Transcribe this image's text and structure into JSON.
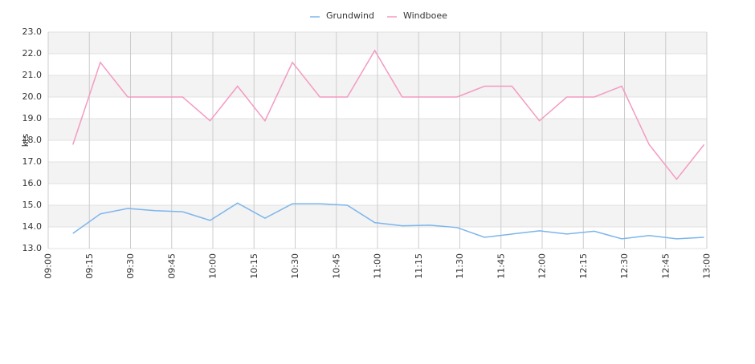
{
  "chart_data": {
    "type": "line",
    "y_label": "kts",
    "x": [
      "09:09",
      "09:19",
      "09:29",
      "09:39",
      "09:49",
      "09:59",
      "10:09",
      "10:19",
      "10:29",
      "10:39",
      "10:49",
      "10:59",
      "11:09",
      "11:19",
      "11:29",
      "11:39",
      "11:49",
      "11:59",
      "12:09",
      "12:19",
      "12:29",
      "12:39",
      "12:49",
      "12:59"
    ],
    "series": [
      {
        "name": "Grundwind",
        "color": "#7cb5ec",
        "values": [
          13.7,
          14.6,
          14.85,
          14.75,
          14.7,
          14.3,
          15.1,
          14.4,
          15.07,
          15.07,
          15.0,
          14.2,
          14.05,
          14.08,
          13.97,
          13.52,
          13.67,
          13.82,
          13.67,
          13.8,
          13.45,
          13.6,
          13.45,
          13.52
        ]
      },
      {
        "name": "Windboee",
        "color": "#f49ac1",
        "values": [
          17.8,
          21.6,
          20.0,
          20.0,
          20.0,
          18.9,
          20.5,
          18.9,
          21.6,
          20.0,
          20.0,
          22.15,
          20.0,
          20.0,
          20.0,
          20.5,
          20.5,
          18.9,
          20.0,
          20.0,
          20.5,
          17.8,
          16.2,
          17.8
        ]
      }
    ],
    "xlim": [
      "09:00",
      "13:00"
    ],
    "xticks": [
      "09:00",
      "09:15",
      "09:30",
      "09:45",
      "10:00",
      "10:15",
      "10:30",
      "10:45",
      "11:00",
      "11:15",
      "11:30",
      "11:45",
      "12:00",
      "12:15",
      "12:30",
      "12:45",
      "13:00"
    ],
    "ylim": [
      13,
      23
    ],
    "yticks": [
      {
        "value": 13,
        "label": "13.0"
      },
      {
        "value": 14,
        "label": "14.0"
      },
      {
        "value": 15,
        "label": "15.0"
      },
      {
        "value": 16,
        "label": "16.0"
      },
      {
        "value": 17,
        "label": "17.0"
      },
      {
        "value": 18,
        "label": "18.0"
      },
      {
        "value": 19,
        "label": "19.0"
      },
      {
        "value": 20,
        "label": "20.0"
      },
      {
        "value": 21,
        "label": "21.0"
      },
      {
        "value": 22,
        "label": "22.0"
      },
      {
        "value": 23,
        "label": "23.0"
      }
    ],
    "grid": true,
    "legend": "top"
  }
}
